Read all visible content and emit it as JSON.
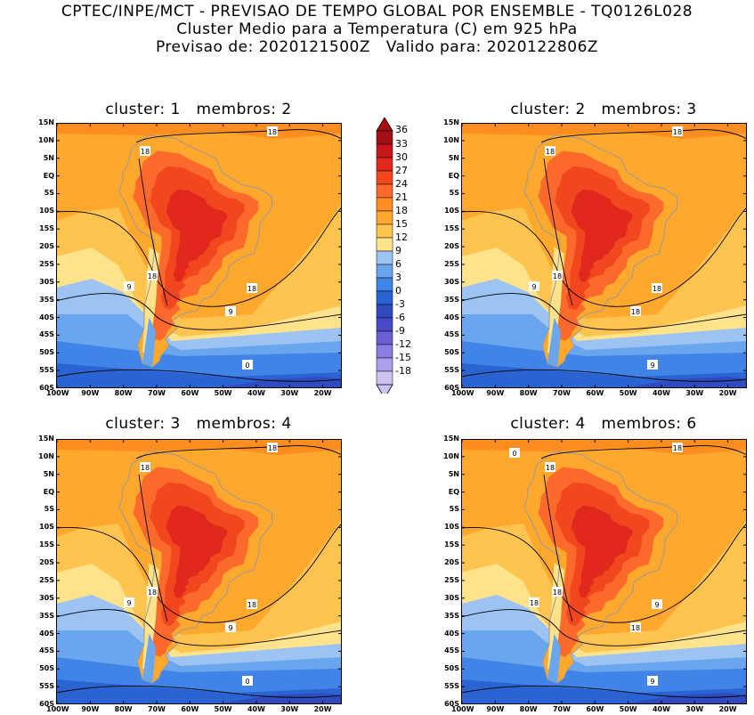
{
  "header": {
    "line1": "CPTEC/INPE/MCT - PREVISAO DE TEMPO GLOBAL POR ENSEMBLE - TQ0126L028",
    "line2": "Cluster Medio para a Temperatura (C) em 925 hPa",
    "line3": "Previsao de: 2020121500Z   Valido para: 2020122806Z"
  },
  "panels": [
    {
      "title": "cluster: 1   membros: 2",
      "labels": [
        "18",
        "18",
        "18",
        "9",
        "18",
        "9",
        "0"
      ]
    },
    {
      "title": "cluster: 2   membros: 3",
      "labels": [
        "18",
        "18",
        "18",
        "9",
        "18",
        "18",
        "9"
      ]
    },
    {
      "title": "cluster: 3   membros: 4",
      "labels": [
        "18",
        "18",
        "18",
        "9",
        "18",
        "9",
        "0"
      ]
    },
    {
      "title": "cluster: 4   membros: 6",
      "labels": [
        "18",
        "18",
        "18",
        "18",
        "9",
        "18",
        "9",
        "0"
      ]
    }
  ],
  "lat_ticks": [
    "15N",
    "10N",
    "5N",
    "EQ",
    "5S",
    "10S",
    "15S",
    "20S",
    "25S",
    "30S",
    "35S",
    "40S",
    "45S",
    "50S",
    "55S",
    "60S"
  ],
  "lon_ticks": [
    "100W",
    "90W",
    "80W",
    "70W",
    "60W",
    "50W",
    "40W",
    "30W",
    "20W"
  ],
  "colorbar": {
    "labels": [
      "36",
      "33",
      "30",
      "27",
      "24",
      "21",
      "18",
      "15",
      "12",
      "9",
      "6",
      "3",
      "0",
      "-3",
      "-6",
      "-9",
      "-12",
      "-15",
      "-18"
    ],
    "colors": [
      "#a50f15",
      "#c8171c",
      "#e0281d",
      "#f2461f",
      "#fb6a2a",
      "#fd8d1f",
      "#fea82e",
      "#fec44f",
      "#fee38b",
      "#9dc3f3",
      "#6aa6ee",
      "#3f84e6",
      "#2a63d2",
      "#2f4cbf",
      "#4a4ac8",
      "#6a5fd6",
      "#8a7fe2",
      "#ac9feb",
      "#cfc3f5"
    ]
  }
}
